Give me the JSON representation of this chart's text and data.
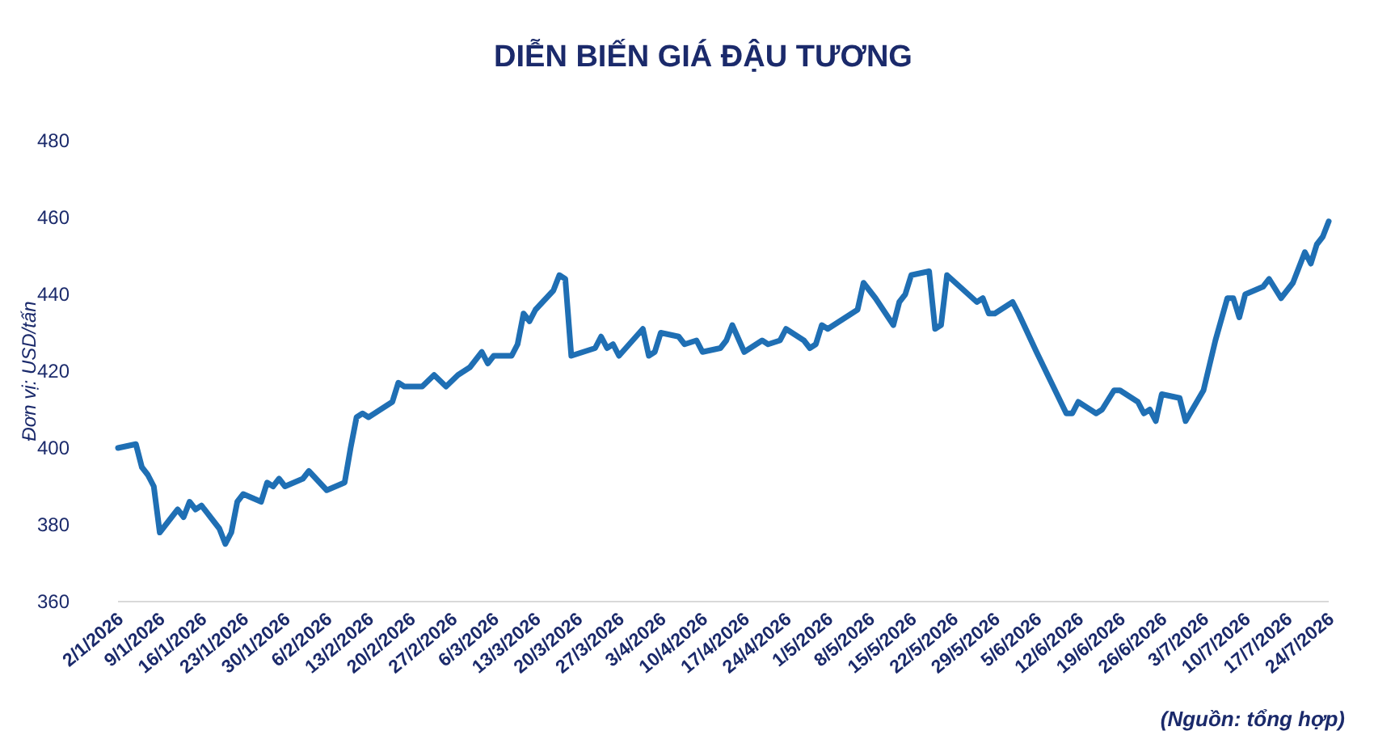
{
  "chart_data": {
    "type": "line",
    "title": "DIỄN BIẾN GIÁ ĐẬU TƯƠNG",
    "ylabel": "Đơn vị: USD/tấn",
    "annotations": [
      "(Nguồn: tổng hợp)"
    ],
    "x": [
      "2026-01-02",
      "2026-01-05",
      "2026-01-06",
      "2026-01-07",
      "2026-01-08",
      "2026-01-09",
      "2026-01-12",
      "2026-01-13",
      "2026-01-14",
      "2026-01-15",
      "2026-01-16",
      "2026-01-18",
      "2026-01-19",
      "2026-01-20",
      "2026-01-21",
      "2026-01-22",
      "2026-01-23",
      "2026-01-26",
      "2026-01-27",
      "2026-01-28",
      "2026-01-29",
      "2026-01-30",
      "2026-02-02",
      "2026-02-03",
      "2026-02-06",
      "2026-02-09",
      "2026-02-10",
      "2026-02-11",
      "2026-02-12",
      "2026-02-13",
      "2026-02-16",
      "2026-02-17",
      "2026-02-18",
      "2026-02-19",
      "2026-02-22",
      "2026-02-24",
      "2026-02-26",
      "2026-02-28",
      "2026-03-02",
      "2026-03-04",
      "2026-03-05",
      "2026-03-06",
      "2026-03-09",
      "2026-03-10",
      "2026-03-11",
      "2026-03-12",
      "2026-03-13",
      "2026-03-16",
      "2026-03-17",
      "2026-03-18",
      "2026-03-19",
      "2026-03-21",
      "2026-03-23",
      "2026-03-24",
      "2026-03-25",
      "2026-03-26",
      "2026-03-27",
      "2026-03-31",
      "2026-04-01",
      "2026-04-02",
      "2026-04-03",
      "2026-04-06",
      "2026-04-07",
      "2026-04-09",
      "2026-04-10",
      "2026-04-13",
      "2026-04-14",
      "2026-04-15",
      "2026-04-17",
      "2026-04-19",
      "2026-04-20",
      "2026-04-21",
      "2026-04-23",
      "2026-04-24",
      "2026-04-27",
      "2026-04-28",
      "2026-04-29",
      "2026-04-30",
      "2026-05-01",
      "2026-05-04",
      "2026-05-05",
      "2026-05-06",
      "2026-05-07",
      "2026-05-09",
      "2026-05-12",
      "2026-05-13",
      "2026-05-14",
      "2026-05-15",
      "2026-05-18",
      "2026-05-19",
      "2026-05-20",
      "2026-05-21",
      "2026-05-26",
      "2026-05-27",
      "2026-05-28",
      "2026-05-29",
      "2026-06-01",
      "2026-06-02",
      "2026-06-05",
      "2026-06-10",
      "2026-06-11",
      "2026-06-12",
      "2026-06-15",
      "2026-06-16",
      "2026-06-18",
      "2026-06-19",
      "2026-06-22",
      "2026-06-23",
      "2026-06-24",
      "2026-06-25",
      "2026-06-26",
      "2026-06-29",
      "2026-06-30",
      "2026-07-03",
      "2026-07-05",
      "2026-07-07",
      "2026-07-08",
      "2026-07-09",
      "2026-07-10",
      "2026-07-13",
      "2026-07-14",
      "2026-07-16",
      "2026-07-18",
      "2026-07-20",
      "2026-07-21",
      "2026-07-22",
      "2026-07-23",
      "2026-07-24"
    ],
    "series": [
      {
        "color": "#1f6fb4",
        "values": [
          400,
          401,
          395,
          393,
          390,
          378,
          384,
          382,
          386,
          384,
          385,
          381,
          379,
          375,
          378,
          386,
          388,
          386,
          391,
          390,
          392,
          390,
          392,
          394,
          389,
          391,
          400,
          408,
          409,
          408,
          411,
          412,
          417,
          416,
          416,
          419,
          416,
          419,
          421,
          425,
          422,
          424,
          424,
          427,
          435,
          433,
          436,
          441,
          445,
          444,
          424,
          425,
          426,
          429,
          426,
          427,
          424,
          431,
          424,
          425,
          430,
          429,
          427,
          428,
          425,
          426,
          428,
          432,
          425,
          427,
          428,
          427,
          428,
          431,
          428,
          426,
          427,
          432,
          431,
          434,
          435,
          436,
          443,
          439,
          432,
          438,
          440,
          445,
          446,
          431,
          432,
          445,
          438,
          439,
          435,
          435,
          438,
          435,
          425,
          409,
          409,
          412,
          409,
          410,
          415,
          415,
          412,
          409,
          410,
          407,
          414,
          413,
          407,
          415,
          428,
          439,
          439,
          434,
          440,
          442,
          444,
          439,
          443,
          451,
          448,
          453,
          455,
          459
        ]
      }
    ],
    "xlim": [
      "2026-01-02",
      "2026-07-24"
    ],
    "xticks": [
      {
        "value": "2026-01-02",
        "label": "2/1/2026"
      },
      {
        "value": "2026-01-09",
        "label": "9/1/2026"
      },
      {
        "value": "2026-01-16",
        "label": "16/1/2026"
      },
      {
        "value": "2026-01-23",
        "label": "23/1/2026"
      },
      {
        "value": "2026-01-30",
        "label": "30/1/2026"
      },
      {
        "value": "2026-02-06",
        "label": "6/2/2026"
      },
      {
        "value": "2026-02-13",
        "label": "13/2/2026"
      },
      {
        "value": "2026-02-20",
        "label": "20/2/2026"
      },
      {
        "value": "2026-02-27",
        "label": "27/2/2026"
      },
      {
        "value": "2026-03-06",
        "label": "6/3/2026"
      },
      {
        "value": "2026-03-13",
        "label": "13/3/2026"
      },
      {
        "value": "2026-03-20",
        "label": "20/3/2026"
      },
      {
        "value": "2026-03-27",
        "label": "27/3/2026"
      },
      {
        "value": "2026-04-03",
        "label": "3/4/2026"
      },
      {
        "value": "2026-04-10",
        "label": "10/4/2026"
      },
      {
        "value": "2026-04-17",
        "label": "17/4/2026"
      },
      {
        "value": "2026-04-24",
        "label": "24/4/2026"
      },
      {
        "value": "2026-05-01",
        "label": "1/5/2026"
      },
      {
        "value": "2026-05-08",
        "label": "8/5/2026"
      },
      {
        "value": "2026-05-15",
        "label": "15/5/2026"
      },
      {
        "value": "2026-05-22",
        "label": "22/5/2026"
      },
      {
        "value": "2026-05-29",
        "label": "29/5/2026"
      },
      {
        "value": "2026-06-05",
        "label": "5/6/2026"
      },
      {
        "value": "2026-06-12",
        "label": "12/6/2026"
      },
      {
        "value": "2026-06-19",
        "label": "19/6/2026"
      },
      {
        "value": "2026-06-26",
        "label": "26/6/2026"
      },
      {
        "value": "2026-07-03",
        "label": "3/7/2026"
      },
      {
        "value": "2026-07-10",
        "label": "10/7/2026"
      },
      {
        "value": "2026-07-17",
        "label": "17/7/2026"
      },
      {
        "value": "2026-07-24",
        "label": "24/7/2026"
      }
    ],
    "ylim": [
      360,
      480
    ],
    "yticks": [
      360,
      380,
      400,
      420,
      440,
      460,
      480
    ],
    "grid": false,
    "line_style": "solid",
    "marker": "none"
  }
}
